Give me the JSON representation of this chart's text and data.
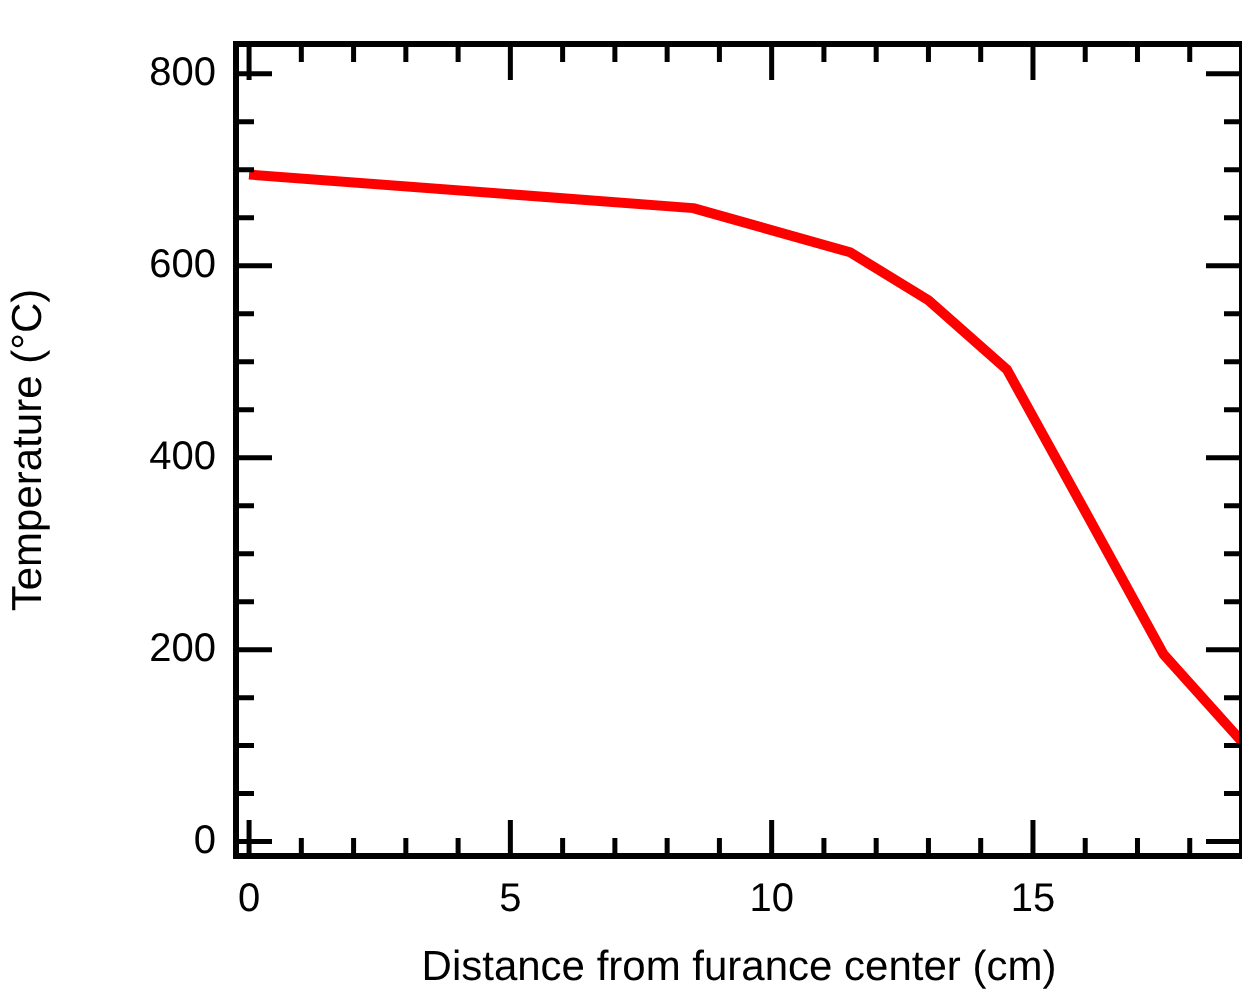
{
  "chart_data": {
    "type": "line",
    "xlabel": "Distance from furance center (cm)",
    "ylabel": "Temperature (°C)",
    "x": [
      0,
      8.5,
      11.5,
      13,
      14.5,
      16,
      17.5,
      19
    ],
    "series": [
      {
        "color": "#ff0000",
        "values": [
          695,
          660,
          614,
          564,
          492,
          344,
          195,
          104
        ]
      }
    ],
    "xlim": [
      -0.25,
      19
    ],
    "ylim": [
      -15,
      831
    ],
    "xticks": [
      0,
      {
        "value": 1,
        "label": null
      },
      {
        "value": 2,
        "label": null
      },
      {
        "value": 3,
        "label": null
      },
      {
        "value": 4,
        "label": null
      },
      5,
      {
        "value": 6,
        "label": null
      },
      {
        "value": 7,
        "label": null
      },
      {
        "value": 8,
        "label": null
      },
      {
        "value": 9,
        "label": null
      },
      10,
      {
        "value": 11,
        "label": null
      },
      {
        "value": 12,
        "label": null
      },
      {
        "value": 13,
        "label": null
      },
      {
        "value": 14,
        "label": null
      },
      15,
      {
        "value": 16,
        "label": null
      },
      {
        "value": 17,
        "label": null
      },
      {
        "value": 18,
        "label": null
      }
    ],
    "yticks": [
      0,
      {
        "value": 50,
        "label": null
      },
      {
        "value": 100,
        "label": null
      },
      {
        "value": 150,
        "label": null
      },
      200,
      {
        "value": 250,
        "label": null
      },
      {
        "value": 300,
        "label": null
      },
      {
        "value": 350,
        "label": null
      },
      400,
      {
        "value": 450,
        "label": null
      },
      {
        "value": 500,
        "label": null
      },
      {
        "value": 550,
        "label": null
      },
      600,
      {
        "value": 650,
        "label": null
      },
      {
        "value": 700,
        "label": null
      },
      {
        "value": 750,
        "label": null
      },
      800
    ],
    "grid": false,
    "legend": false,
    "marker": "none",
    "line_style": "solid"
  }
}
